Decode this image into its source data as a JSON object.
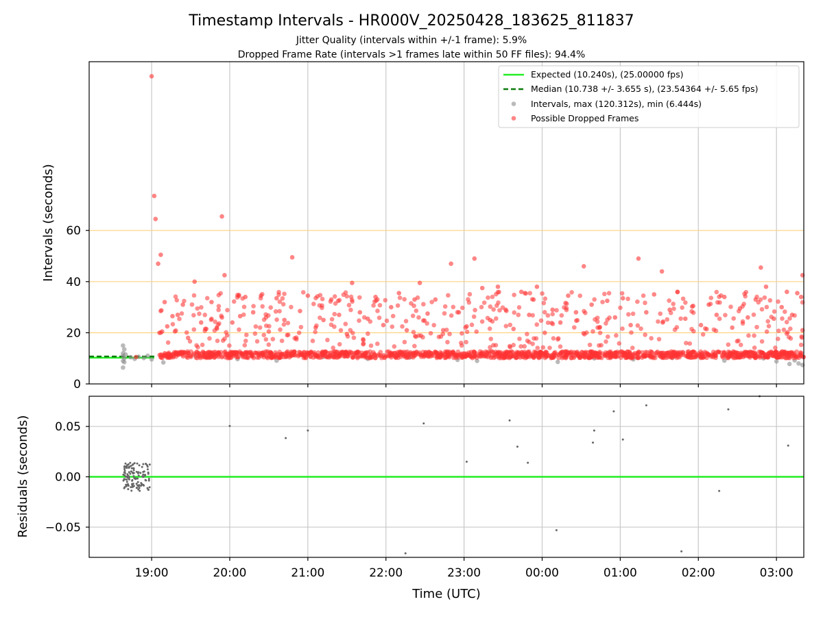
{
  "chart_data": [
    {
      "panel": "intervals",
      "type": "scatter",
      "title": "Timestamp Intervals - HR000V_20250428_183625_811837",
      "subtitle_lines": [
        "Jitter Quality (intervals within +/-1 frame): 5.9%",
        "Dropped Frame Rate (intervals >1 frames late within 50 FF files): 94.4%"
      ],
      "xlabel": "",
      "ylabel": "Intervals (seconds)",
      "xlim": [
        "18:12",
        "03:21"
      ],
      "ylim": [
        0,
        126
      ],
      "yticks": [
        0,
        20,
        40,
        60
      ],
      "ytick_labels": [
        "0",
        "20",
        "40",
        "60"
      ],
      "horizontal_reference_lines": [
        20,
        40,
        60
      ],
      "reference_line_color": "#ffd27f",
      "legend": {
        "placement": "top-right",
        "entries": [
          {
            "label": "Expected (10.240s), (25.00000 fps)",
            "style": "solid-line",
            "color": "#22ee22"
          },
          {
            "label": "Median (10.738 +/- 3.655 s), (23.54364 +/- 5.65 fps)",
            "style": "dashed-line",
            "color": "#0b7a0b"
          },
          {
            "label": "Intervals, max (120.312s), min (6.444s)",
            "style": "marker",
            "color": "#8c8c8c"
          },
          {
            "label": "Possible Dropped Frames",
            "style": "marker",
            "color": "#ff3333"
          }
        ]
      },
      "series": [
        {
          "name": "Expected (10.240s), (25.00000 fps)",
          "kind": "hline",
          "value": 10.24,
          "x_range": [
            "18:12",
            "19:02"
          ],
          "color": "#22ee22"
        },
        {
          "name": "Median (10.738 +/- 3.655 s), (23.54364 +/- 5.65 fps)",
          "kind": "hline",
          "value": 10.738,
          "x_range": [
            "18:12",
            "19:02"
          ],
          "color": "#0b7a0b"
        },
        {
          "name": "Intervals, max (120.312s), min (6.444s)",
          "kind": "points",
          "color": "#8c8c8c",
          "points": [
            [
              "18:38",
              15.0
            ],
            [
              "18:38",
              12.0
            ],
            [
              "18:39",
              13.5
            ],
            [
              "18:38",
              11.0
            ],
            [
              "18:39",
              10.0
            ],
            [
              "18:38",
              9.0
            ],
            [
              "18:38",
              6.4
            ],
            [
              "18:40",
              11.5
            ],
            [
              "18:39",
              8.5
            ],
            [
              "18:44",
              10.4
            ],
            [
              "18:47",
              9.8
            ],
            [
              "18:50",
              10.6
            ],
            [
              "18:54",
              10.1
            ],
            [
              "18:57",
              11.0
            ],
            [
              "19:00",
              9.6
            ],
            [
              "19:09",
              8.4
            ],
            [
              "19:34",
              10.9
            ],
            [
              "20:06",
              9.7
            ],
            [
              "20:36",
              9.1
            ],
            [
              "21:12",
              10.6
            ],
            [
              "21:46",
              9.8
            ],
            [
              "22:18",
              10.3
            ],
            [
              "22:55",
              9.4
            ],
            [
              "23:10",
              9.0
            ],
            [
              "23:40",
              10.4
            ],
            [
              "00:12",
              8.6
            ],
            [
              "00:40",
              10.0
            ],
            [
              "01:10",
              9.6
            ],
            [
              "01:40",
              10.2
            ],
            [
              "02:20",
              9.1
            ],
            [
              "02:50",
              10.0
            ],
            [
              "03:00",
              8.8
            ],
            [
              "03:10",
              7.8
            ],
            [
              "03:14",
              9.2
            ],
            [
              "03:17",
              8.0
            ],
            [
              "03:20",
              7.4
            ],
            [
              "03:19",
              10.8
            ]
          ]
        },
        {
          "name": "Possible Dropped Frames",
          "kind": "points",
          "color": "#ff3333",
          "points": [
            [
              "18:48",
              10.5
            ],
            [
              "19:00",
              120.3
            ],
            [
              "19:02",
              73.5
            ],
            [
              "19:03",
              64.5
            ],
            [
              "19:05",
              47.0
            ],
            [
              "19:07",
              50.5
            ],
            [
              "19:06",
              20.0
            ],
            [
              "19:08",
              20.5
            ],
            [
              "19:10",
              32.0
            ],
            [
              "19:12",
              22.5
            ],
            [
              "19:16",
              26.5
            ],
            [
              "19:20",
              27.0
            ],
            [
              "19:24",
              31.0
            ],
            [
              "19:28",
              18.0
            ],
            [
              "19:33",
              40.0
            ],
            [
              "19:38",
              24.0
            ],
            [
              "19:42",
              21.5
            ],
            [
              "19:46",
              32.0
            ],
            [
              "19:50",
              22.0
            ],
            [
              "19:54",
              26.0
            ],
            [
              "19:58",
              19.0
            ],
            [
              "19:54",
              65.5
            ],
            [
              "19:56",
              42.5
            ],
            [
              "20:02",
              24.0
            ],
            [
              "20:08",
              26.5
            ],
            [
              "20:12",
              34.0
            ],
            [
              "20:18",
              28.0
            ],
            [
              "20:24",
              34.5
            ],
            [
              "20:30",
              20.5
            ],
            [
              "20:36",
              33.5
            ],
            [
              "20:42",
              25.0
            ],
            [
              "20:48",
              49.5
            ],
            [
              "20:54",
              28.5
            ],
            [
              "21:00",
              34.5
            ],
            [
              "21:06",
              22.0
            ],
            [
              "21:12",
              25.0
            ],
            [
              "21:18",
              33.0
            ],
            [
              "21:24",
              27.0
            ],
            [
              "21:30",
              19.5
            ],
            [
              "21:34",
              39.5
            ],
            [
              "21:40",
              28.0
            ],
            [
              "21:46",
              25.5
            ],
            [
              "21:52",
              34.0
            ],
            [
              "21:58",
              23.0
            ],
            [
              "22:04",
              30.0
            ],
            [
              "22:10",
              35.5
            ],
            [
              "22:16",
              21.0
            ],
            [
              "22:22",
              33.0
            ],
            [
              "22:26",
              39.5
            ],
            [
              "22:32",
              27.5
            ],
            [
              "22:38",
              33.0
            ],
            [
              "22:44",
              21.0
            ],
            [
              "22:50",
              47.0
            ],
            [
              "22:56",
              28.0
            ],
            [
              "23:02",
              22.5
            ],
            [
              "23:08",
              49.0
            ],
            [
              "23:14",
              37.5
            ],
            [
              "23:20",
              25.0
            ],
            [
              "23:26",
              38.0
            ],
            [
              "23:32",
              29.0
            ],
            [
              "23:38",
              21.5
            ],
            [
              "23:44",
              36.0
            ],
            [
              "23:50",
              27.0
            ],
            [
              "23:56",
              38.0
            ],
            [
              "00:02",
              20.0
            ],
            [
              "00:08",
              29.0
            ],
            [
              "00:14",
              24.0
            ],
            [
              "00:20",
              34.5
            ],
            [
              "00:26",
              28.0
            ],
            [
              "00:32",
              46.0
            ],
            [
              "00:38",
              31.0
            ],
            [
              "00:44",
              22.0
            ],
            [
              "00:50",
              32.5
            ],
            [
              "00:56",
              26.0
            ],
            [
              "01:02",
              33.5
            ],
            [
              "01:08",
              23.0
            ],
            [
              "01:14",
              49.0
            ],
            [
              "01:20",
              28.0
            ],
            [
              "01:26",
              35.0
            ],
            [
              "01:32",
              44.0
            ],
            [
              "01:38",
              29.0
            ],
            [
              "01:44",
              36.0
            ],
            [
              "01:50",
              25.5
            ],
            [
              "01:56",
              30.5
            ],
            [
              "02:02",
              23.0
            ],
            [
              "02:08",
              31.0
            ],
            [
              "02:14",
              27.0
            ],
            [
              "02:20",
              34.0
            ],
            [
              "02:26",
              22.0
            ],
            [
              "02:32",
              29.5
            ],
            [
              "02:38",
              26.0
            ],
            [
              "02:44",
              33.0
            ],
            [
              "02:48",
              45.5
            ],
            [
              "02:52",
              38.0
            ],
            [
              "02:58",
              25.5
            ],
            [
              "03:04",
              30.0
            ],
            [
              "03:08",
              36.0
            ],
            [
              "03:12",
              27.0
            ],
            [
              "03:16",
              35.5
            ],
            [
              "03:19",
              34.0
            ],
            [
              "03:20",
              42.5
            ],
            [
              "03:20",
              21.0
            ]
          ]
        }
      ]
    },
    {
      "panel": "residuals",
      "type": "scatter",
      "xlabel": "Time (UTC)",
      "ylabel": "Residuals (seconds)",
      "xlim": [
        "18:12",
        "03:21"
      ],
      "ylim": [
        -0.08,
        0.08
      ],
      "yticks": [
        -0.05,
        0.0,
        0.05
      ],
      "ytick_labels": [
        "−0.05",
        "0.00",
        "0.05"
      ],
      "xticks": [
        "19:00",
        "20:00",
        "21:00",
        "22:00",
        "23:00",
        "00:00",
        "01:00",
        "02:00",
        "03:00"
      ],
      "xtick_labels": [
        "19:00",
        "20:00",
        "21:00",
        "22:00",
        "23:00",
        "00:00",
        "01:00",
        "02:00",
        "03:00"
      ],
      "series": [
        {
          "name": "",
          "kind": "hline",
          "value": 0.0,
          "color": "#22ee22"
        },
        {
          "name": "",
          "kind": "points",
          "color": "#666666",
          "points": [
            [
              "20:00",
              0.0505
            ],
            [
              "20:43",
              0.0385
            ],
            [
              "21:00",
              0.046
            ],
            [
              "22:15",
              -0.076
            ],
            [
              "22:29",
              0.053
            ],
            [
              "23:02",
              0.015
            ],
            [
              "23:35",
              0.056
            ],
            [
              "23:41",
              0.03
            ],
            [
              "23:49",
              0.014
            ],
            [
              "00:11",
              -0.053
            ],
            [
              "00:39",
              0.034
            ],
            [
              "00:40",
              0.046
            ],
            [
              "00:55",
              0.065
            ],
            [
              "01:02",
              0.037
            ],
            [
              "01:20",
              0.071
            ],
            [
              "01:47",
              -0.074
            ],
            [
              "02:16",
              -0.014
            ],
            [
              "02:23",
              0.067
            ],
            [
              "02:47",
              0.08
            ],
            [
              "03:09",
              0.031
            ]
          ]
        }
      ]
    }
  ]
}
